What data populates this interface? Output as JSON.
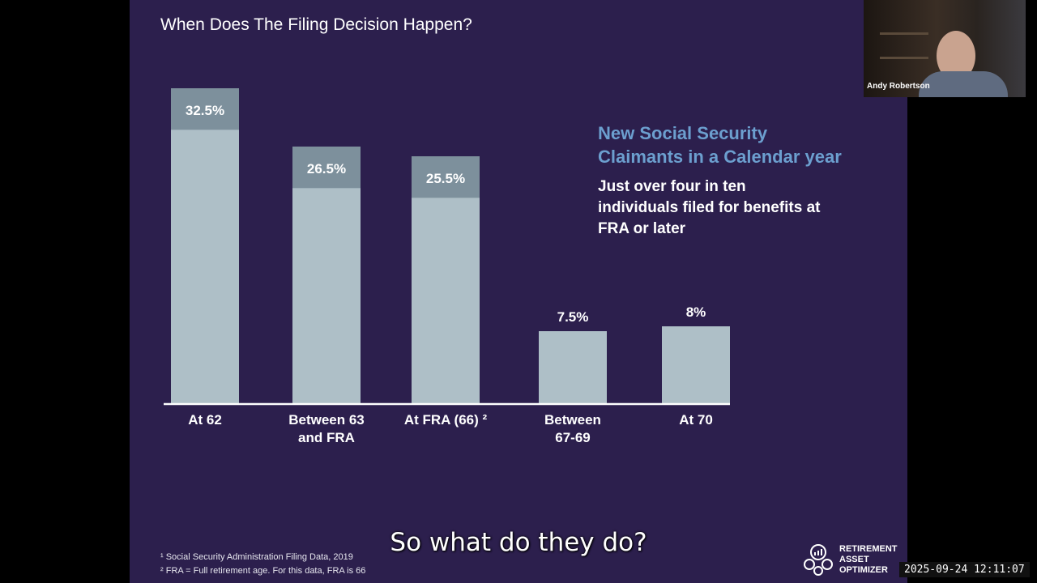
{
  "slide": {
    "side_heading_line1": "New Social Security",
    "side_heading_line2": "Claimants in a Calendar year",
    "side_body": "Just over four in ten individuals filed for benefits at FRA or later",
    "footnote1": "¹ Social Security Administration Filing Data, 2019",
    "footnote2": "² FRA = Full retirement age. For this data, FRA is 66",
    "logo_line1": "RETIREMENT",
    "logo_line2": "ASSET",
    "logo_line3": "OPTIMIZER"
  },
  "chart_data": {
    "type": "bar",
    "title": "When Does The Filing Decision Happen?",
    "categories": [
      [
        "At 62"
      ],
      [
        "Between 63",
        "and FRA"
      ],
      [
        "At FRA (66) ²"
      ],
      [
        "Between",
        "67-69"
      ],
      [
        "At 70"
      ]
    ],
    "values": [
      32.5,
      26.5,
      25.5,
      7.5,
      8
    ],
    "data_labels": [
      "32.5%",
      "26.5%",
      "25.5%",
      "7.5%",
      "8%"
    ],
    "label_inside": [
      true,
      true,
      true,
      false,
      false
    ],
    "xlabel": "",
    "ylabel": "",
    "ylim": [
      0,
      35
    ],
    "grid": false,
    "colors": {
      "bar": "#aebfc7",
      "bar_top": "#7d909c",
      "axis": "#ffffff"
    }
  },
  "video": {
    "participant_name": "Andy Robertson"
  },
  "caption": "So what do they do?",
  "timestamp": "2025-09-24 12:11:07"
}
